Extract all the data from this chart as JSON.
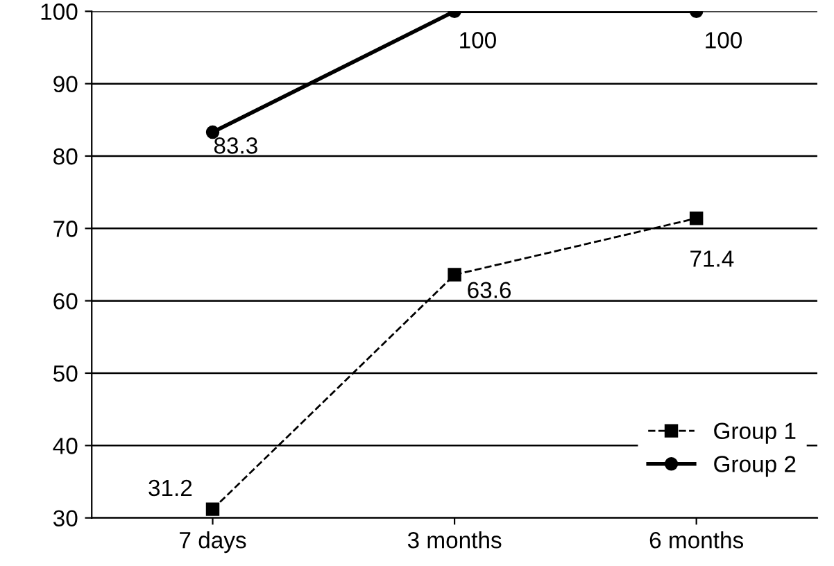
{
  "chart_data": {
    "type": "line",
    "categories": [
      "7 days",
      "3 months",
      "6 months"
    ],
    "series": [
      {
        "name": "Group 1",
        "color": "#000000",
        "values": [
          31.2,
          63.6,
          71.4
        ],
        "marker": "square",
        "line_style": "dashed"
      },
      {
        "name": "Group 2",
        "color": "#000000",
        "values": [
          83.3,
          100,
          100
        ],
        "marker": "circle",
        "line_style": "solid"
      }
    ],
    "ylim": [
      30,
      100
    ],
    "yticks": [
      30,
      40,
      50,
      60,
      70,
      80,
      90,
      100
    ],
    "grid": "y",
    "legend": "bottom right",
    "data_labels": true
  }
}
